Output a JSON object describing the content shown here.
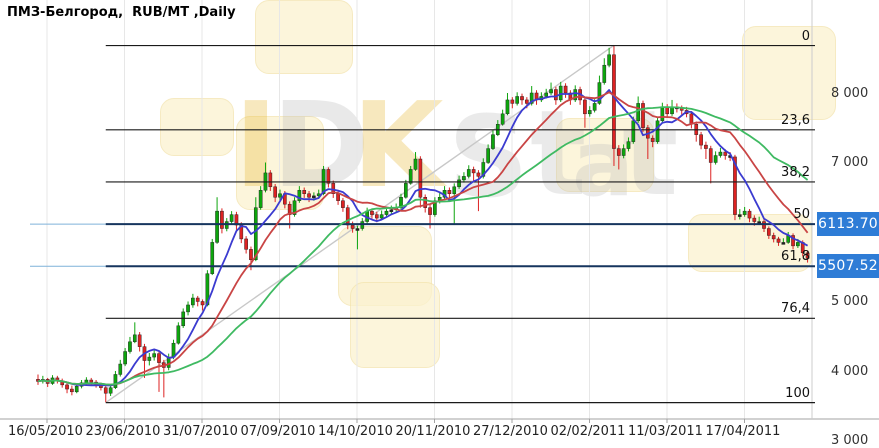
{
  "title": "ПМЗ-Белгород,  RUB/MT ,Daily",
  "colors": {
    "background": "#ffffff",
    "grid": "#e7e7e7",
    "axis_line": "#a3a3a3",
    "candle_up": "#0da50d",
    "candle_down": "#dd2222",
    "candle_doji": "#222222",
    "fib_line": "#1a1a1a",
    "fib_major_line": "#16355e",
    "price_level_line": "#7fb2d9",
    "trendline": "#c8c8c8",
    "badge_background": "#2e7cd6",
    "badge_text": "#ffffff",
    "watermark_tile": "#fbf2cf"
  },
  "watermark": {
    "text": "IDKStat",
    "letters": [
      {
        "ch": "I",
        "color": "#e8b62a"
      },
      {
        "ch": "D",
        "color": "#b9b9b9"
      },
      {
        "ch": "K",
        "color": "#e8b62a"
      },
      {
        "ch": "S",
        "color": "#bdbdbd"
      },
      {
        "ch": "t",
        "color": "#bdbdbd"
      },
      {
        "ch": "a",
        "color": "#bdbdbd"
      },
      {
        "ch": "t",
        "color": "#bdbdbd"
      }
    ]
  },
  "price_markers": [
    {
      "label": "6113.70",
      "price": 6113.7
    },
    {
      "label": "5507.52",
      "price": 5507.52
    }
  ],
  "chart_data": {
    "type": "candlestick",
    "title": "ПМЗ-Белгород,  RUB/MT ,Daily",
    "instrument": "ПМЗ-Белгород",
    "unit": "RUB/MT",
    "interval": "Daily",
    "ylim": [
      3309,
      9338
    ],
    "y_ticks": [
      {
        "value": 8000,
        "label": "8 000"
      },
      {
        "value": 7000,
        "label": "7 000"
      },
      {
        "value": 6000,
        "label": "6 000"
      },
      {
        "value": 5000,
        "label": "5 000"
      },
      {
        "value": 4000,
        "label": "4 000"
      },
      {
        "value": 3000,
        "label": "3 000"
      }
    ],
    "x_labels": [
      "16/05/2010",
      "23/06/2010",
      "31/07/2010",
      "07/09/2010",
      "14/10/2010",
      "20/11/2010",
      "27/12/2010",
      "02/02/2011",
      "11/03/2011",
      "17/04/2011"
    ],
    "grid": "vertical-only",
    "fibonacci": {
      "start_index": 14,
      "levels": [
        {
          "pct": "0",
          "price": 8682.26,
          "major": false
        },
        {
          "pct": "23,6",
          "price": 7469.9,
          "major": false
        },
        {
          "pct": "38,2",
          "price": 6719.9,
          "major": false
        },
        {
          "pct": "50",
          "price": 6113.7,
          "major": true
        },
        {
          "pct": "61,8",
          "price": 5507.52,
          "major": true
        },
        {
          "pct": "76,4",
          "price": 4757.55,
          "major": false
        },
        {
          "pct": "100",
          "price": 3545.14,
          "major": false
        }
      ]
    },
    "trendline": {
      "from_index": 14,
      "from_price": 3545,
      "to_index": 119,
      "to_price": 8686
    },
    "moving_averages": [
      {
        "name": "fast",
        "window": 7,
        "color": "#3b3bd0"
      },
      {
        "name": "medium",
        "window": 16,
        "color": "#c94545"
      },
      {
        "name": "slow",
        "window": 34,
        "color": "#3fba62"
      }
    ],
    "ohlc": [
      [
        3880,
        3950,
        3800,
        3850
      ],
      [
        3850,
        3930,
        3820,
        3880
      ],
      [
        3880,
        3900,
        3770,
        3820
      ],
      [
        3820,
        3940,
        3800,
        3900
      ],
      [
        3900,
        3930,
        3820,
        3860
      ],
      [
        3860,
        3890,
        3760,
        3800
      ],
      [
        3800,
        3830,
        3680,
        3740
      ],
      [
        3740,
        3790,
        3650,
        3700
      ],
      [
        3700,
        3820,
        3680,
        3780
      ],
      [
        3780,
        3870,
        3750,
        3830
      ],
      [
        3830,
        3910,
        3800,
        3870
      ],
      [
        3870,
        3900,
        3800,
        3840
      ],
      [
        3840,
        3870,
        3760,
        3800
      ],
      [
        3800,
        3830,
        3720,
        3760
      ],
      [
        3760,
        3790,
        3550,
        3680
      ],
      [
        3680,
        3800,
        3640,
        3760
      ],
      [
        3760,
        4000,
        3740,
        3950
      ],
      [
        3950,
        4160,
        3920,
        4100
      ],
      [
        4100,
        4330,
        4070,
        4280
      ],
      [
        4280,
        4490,
        4250,
        4420
      ],
      [
        4420,
        4700,
        4400,
        4520
      ],
      [
        4520,
        4560,
        4280,
        4350
      ],
      [
        4350,
        4390,
        3900,
        4150
      ],
      [
        4150,
        4260,
        4080,
        4200
      ],
      [
        4200,
        4310,
        4150,
        4250
      ],
      [
        4250,
        4280,
        3700,
        4120
      ],
      [
        4120,
        4160,
        3620,
        4050
      ],
      [
        4050,
        4250,
        4010,
        4200
      ],
      [
        4200,
        4450,
        4170,
        4400
      ],
      [
        4400,
        4700,
        4380,
        4650
      ],
      [
        4650,
        4900,
        4620,
        4850
      ],
      [
        4850,
        5000,
        4800,
        4950
      ],
      [
        4950,
        5110,
        4910,
        5050
      ],
      [
        5050,
        5080,
        4930,
        5000
      ],
      [
        5000,
        5030,
        4870,
        4950
      ],
      [
        4950,
        5450,
        4930,
        5400
      ],
      [
        5400,
        5900,
        5380,
        5850
      ],
      [
        5850,
        6500,
        5830,
        6300
      ],
      [
        6300,
        6340,
        5980,
        6050
      ],
      [
        6050,
        6200,
        6010,
        6150
      ],
      [
        6150,
        6300,
        6110,
        6250
      ],
      [
        6250,
        6290,
        6030,
        6100
      ],
      [
        6100,
        6140,
        5840,
        5900
      ],
      [
        5900,
        5940,
        5690,
        5750
      ],
      [
        5750,
        5790,
        5450,
        5600
      ],
      [
        5600,
        6500,
        5580,
        6350
      ],
      [
        6350,
        6660,
        6320,
        6600
      ],
      [
        6600,
        7000,
        6570,
        6850
      ],
      [
        6850,
        6890,
        6590,
        6650
      ],
      [
        6650,
        6690,
        6430,
        6500
      ],
      [
        6500,
        6610,
        6460,
        6550
      ],
      [
        6550,
        6590,
        6340,
        6400
      ],
      [
        6400,
        6440,
        6050,
        6250
      ],
      [
        6250,
        6500,
        6220,
        6450
      ],
      [
        6450,
        6660,
        6420,
        6600
      ],
      [
        6600,
        6640,
        6490,
        6550
      ],
      [
        6550,
        6590,
        6430,
        6500
      ],
      [
        6500,
        6570,
        6450,
        6520
      ],
      [
        6520,
        6610,
        6480,
        6550
      ],
      [
        6550,
        6950,
        6530,
        6900
      ],
      [
        6900,
        6930,
        6640,
        6700
      ],
      [
        6700,
        6740,
        6490,
        6550
      ],
      [
        6550,
        6590,
        6390,
        6450
      ],
      [
        6450,
        6490,
        6290,
        6350
      ],
      [
        6350,
        6390,
        6040,
        6100
      ],
      [
        6100,
        6150,
        5990,
        6050
      ],
      [
        6050,
        6090,
        5750,
        6050
      ],
      [
        6050,
        6200,
        6020,
        6150
      ],
      [
        6150,
        6350,
        6120,
        6300
      ],
      [
        6300,
        6340,
        6190,
        6250
      ],
      [
        6250,
        6290,
        6140,
        6200
      ],
      [
        6200,
        6310,
        6170,
        6250
      ],
      [
        6250,
        6360,
        6220,
        6300
      ],
      [
        6300,
        6380,
        6260,
        6320
      ],
      [
        6320,
        6410,
        6290,
        6350
      ],
      [
        6350,
        6550,
        6320,
        6500
      ],
      [
        6500,
        6750,
        6480,
        6700
      ],
      [
        6700,
        6950,
        6680,
        6900
      ],
      [
        6900,
        7150,
        6880,
        7050
      ],
      [
        7050,
        7090,
        6350,
        6500
      ],
      [
        6500,
        6540,
        6280,
        6350
      ],
      [
        6350,
        6390,
        6050,
        6250
      ],
      [
        6250,
        6500,
        6220,
        6450
      ],
      [
        6450,
        6560,
        6410,
        6500
      ],
      [
        6500,
        6660,
        6470,
        6600
      ],
      [
        6600,
        6640,
        6480,
        6550
      ],
      [
        6550,
        6700,
        6100,
        6650
      ],
      [
        6650,
        6810,
        6620,
        6750
      ],
      [
        6750,
        6860,
        6710,
        6800
      ],
      [
        6800,
        6960,
        6770,
        6900
      ],
      [
        6900,
        6940,
        6740,
        6850
      ],
      [
        6850,
        6890,
        6300,
        6800
      ],
      [
        6800,
        7060,
        6770,
        7000
      ],
      [
        7000,
        7260,
        6980,
        7200
      ],
      [
        7200,
        7460,
        7180,
        7400
      ],
      [
        7400,
        7610,
        7380,
        7550
      ],
      [
        7550,
        7760,
        7530,
        7700
      ],
      [
        7700,
        8000,
        7680,
        7900
      ],
      [
        7900,
        7940,
        7780,
        7850
      ],
      [
        7850,
        8010,
        7820,
        7950
      ],
      [
        7950,
        7990,
        7830,
        7900
      ],
      [
        7900,
        7940,
        7780,
        7850
      ],
      [
        7850,
        8100,
        7820,
        8000
      ],
      [
        8000,
        8040,
        7830,
        7900
      ],
      [
        7900,
        8010,
        7870,
        7950
      ],
      [
        7950,
        8060,
        7920,
        8000
      ],
      [
        8000,
        8150,
        7970,
        8050
      ],
      [
        8050,
        8090,
        7830,
        7900
      ],
      [
        7900,
        8160,
        7870,
        8100
      ],
      [
        8100,
        8140,
        7930,
        8000
      ],
      [
        8000,
        8040,
        7830,
        7900
      ],
      [
        7900,
        8110,
        7870,
        8050
      ],
      [
        8050,
        8090,
        7830,
        7900
      ],
      [
        7900,
        7940,
        7500,
        7700
      ],
      [
        7700,
        7810,
        7660,
        7750
      ],
      [
        7750,
        7910,
        7720,
        7850
      ],
      [
        7850,
        8250,
        7830,
        8150
      ],
      [
        8150,
        8500,
        8120,
        8400
      ],
      [
        8400,
        8650,
        8370,
        8550
      ],
      [
        8550,
        8686,
        6950,
        7200
      ],
      [
        7200,
        7250,
        6900,
        7100
      ],
      [
        7100,
        7260,
        7060,
        7200
      ],
      [
        7200,
        7360,
        7160,
        7300
      ],
      [
        7300,
        7660,
        7270,
        7600
      ],
      [
        7600,
        7950,
        7570,
        7850
      ],
      [
        7850,
        7890,
        7440,
        7500
      ],
      [
        7500,
        7540,
        7050,
        7350
      ],
      [
        7350,
        7390,
        7220,
        7300
      ],
      [
        7300,
        7660,
        7270,
        7600
      ],
      [
        7600,
        7860,
        7570,
        7800
      ],
      [
        7800,
        7840,
        7640,
        7700
      ],
      [
        7700,
        7900,
        7670,
        7800
      ],
      [
        7800,
        7850,
        7720,
        7780
      ],
      [
        7780,
        7820,
        7690,
        7750
      ],
      [
        7750,
        7800,
        7650,
        7700
      ],
      [
        7700,
        7740,
        7490,
        7550
      ],
      [
        7550,
        7590,
        7300,
        7400
      ],
      [
        7400,
        7440,
        7190,
        7250
      ],
      [
        7250,
        7300,
        7050,
        7200
      ],
      [
        7200,
        7240,
        6700,
        7000
      ],
      [
        7000,
        7160,
        6970,
        7100
      ],
      [
        7100,
        7210,
        7070,
        7150
      ],
      [
        7150,
        7190,
        7040,
        7100
      ],
      [
        7100,
        7150,
        7020,
        7080
      ],
      [
        7080,
        7110,
        6170,
        6250
      ],
      [
        6250,
        6330,
        6180,
        6250
      ],
      [
        6250,
        6360,
        6220,
        6300
      ],
      [
        6300,
        6330,
        6140,
        6200
      ],
      [
        6200,
        6240,
        6090,
        6150
      ],
      [
        6150,
        6220,
        6100,
        6150
      ],
      [
        6150,
        6180,
        6000,
        6050
      ],
      [
        6050,
        6080,
        5900,
        5950
      ],
      [
        5950,
        5990,
        5850,
        5900
      ],
      [
        5900,
        5930,
        5800,
        5850
      ],
      [
        5850,
        5910,
        5820,
        5850
      ],
      [
        5850,
        6000,
        5830,
        5950
      ],
      [
        5950,
        5980,
        5750,
        5800
      ],
      [
        5800,
        5900,
        5770,
        5850
      ],
      [
        5850,
        5880,
        5650,
        5700
      ],
      [
        5700,
        5730,
        5560,
        5620
      ]
    ]
  }
}
